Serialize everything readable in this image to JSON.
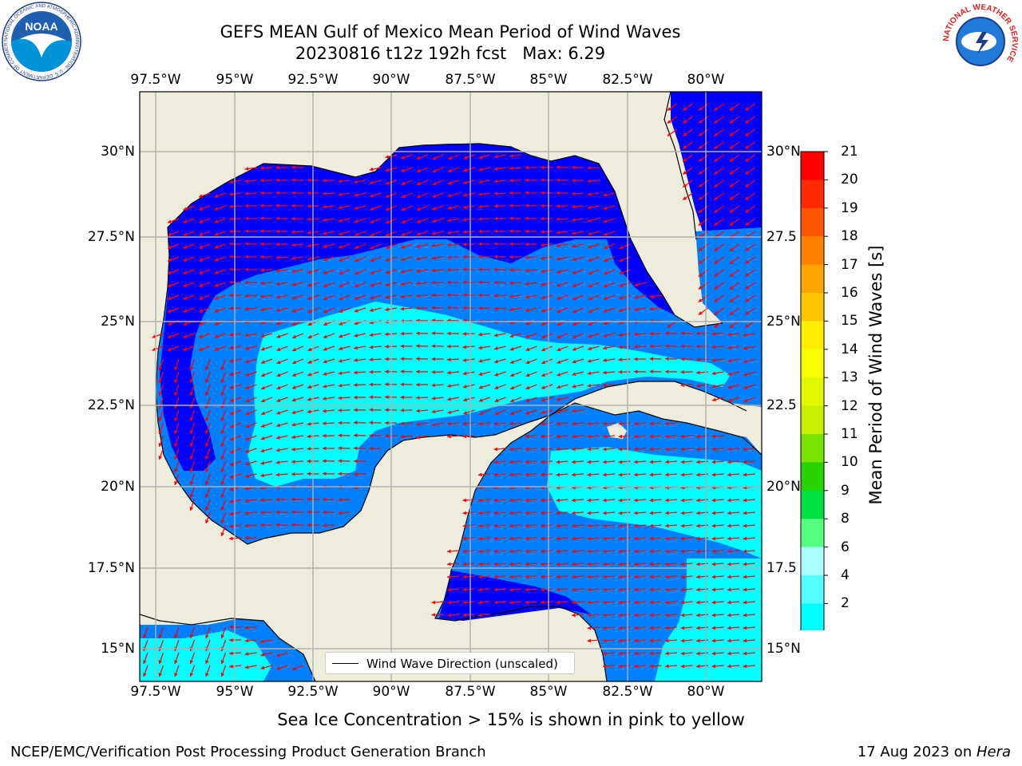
{
  "title_line1": "GEFS MEAN Gulf of Mexico Mean Period of Wind Waves",
  "title_line2": "20230816 t12z 192h fcst   Max: 6.29",
  "lon_labels": [
    "97.5°W",
    "95°W",
    "92.5°W",
    "90°W",
    "87.5°W",
    "85°W",
    "82.5°W",
    "80°W"
  ],
  "lat_labels": [
    "30°N",
    "27.5°N",
    "25°N",
    "22.5°N",
    "20°N",
    "17.5°N",
    "15°N"
  ],
  "lat_labels_right": [
    "30°N",
    "27.5",
    "25°N",
    "22.5",
    "20°N",
    "17.5",
    "15°N"
  ],
  "colorbar": {
    "label": "Mean Period of Wind Waves [s]",
    "ticks": [
      "21",
      "20",
      "19",
      "18",
      "17",
      "16",
      "15",
      "14",
      "13",
      "12",
      "11",
      "10",
      "9",
      "8",
      "6",
      "4",
      "2"
    ],
    "colors": [
      "#ff0000",
      "#ff2a00",
      "#ff5500",
      "#ff8000",
      "#ffa500",
      "#ffc400",
      "#ffee00",
      "#f5ff00",
      "#e0f800",
      "#c8f000",
      "#78e200",
      "#28d400",
      "#00e040",
      "#55ff80",
      "#aaffff",
      "#55ffff",
      "#00ffff",
      "#0080ff",
      "#0000ff"
    ]
  },
  "legend": {
    "label": "Wind Wave Direction (unscaled)"
  },
  "note": "Sea Ice Concentration > 15% is shown in pink to yellow",
  "footer_left": "NCEP/EMC/Verification Post Processing Product Generation Branch",
  "footer_date": "17 Aug 2023 on ",
  "footer_host": "Hera",
  "logo_left": {
    "name": "NOAA",
    "ring_text": "NATIONAL OCEANIC AND ATMOSPHERIC ADMINISTRATION · U.S. DEPARTMENT OF COMMERCE"
  },
  "logo_right": {
    "ring_text": "NATIONAL WEATHER SERVICE"
  },
  "colors": {
    "land": "#eeecdb",
    "bin_2_4": "#0080ff",
    "bin_below_2": "#0000ff",
    "bin_4_6": "#00ffff",
    "arrow": "#ff0000",
    "grid": "#b0b0b0"
  }
}
